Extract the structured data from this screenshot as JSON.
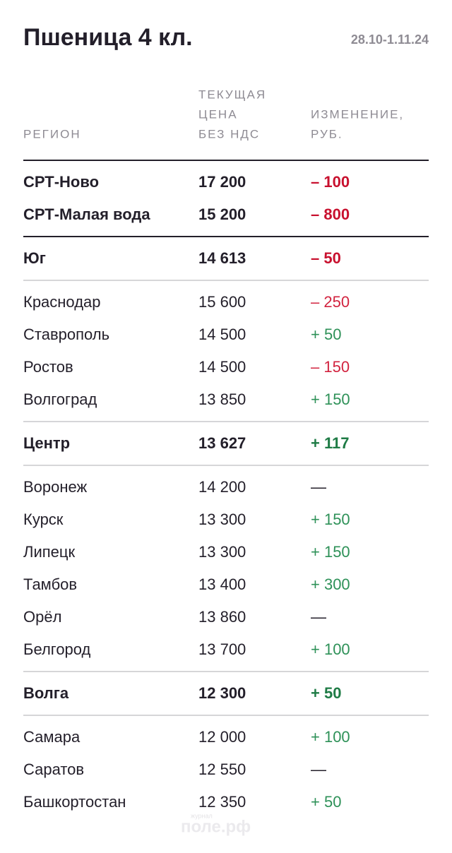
{
  "header": {
    "title": "Пшеница 4 кл.",
    "date": "28.10-1.11.24"
  },
  "columns": {
    "region": [
      "РЕГИОН"
    ],
    "price": [
      "ТЕКУЩАЯ",
      "ЦЕНА",
      "БЕЗ НДС"
    ],
    "change": [
      "ИЗМЕНЕНИЕ,",
      "РУБ."
    ]
  },
  "blocks": [
    {
      "bold": true,
      "rows": [
        [
          "СРТ-Ново",
          "17 200",
          "– 100"
        ],
        [
          "СРТ-Малая вода",
          "15 200",
          "– 800"
        ]
      ]
    },
    {
      "bold": true,
      "rows": [
        [
          "Юг",
          "14 613",
          "– 50"
        ]
      ]
    },
    {
      "bold": false,
      "rows": [
        [
          "Краснодар",
          "15 600",
          "– 250"
        ],
        [
          "Ставрополь",
          "14 500",
          "+ 50"
        ],
        [
          "Ростов",
          "14 500",
          "– 150"
        ],
        [
          "Волгоград",
          "13 850",
          "+ 150"
        ]
      ]
    },
    {
      "bold": true,
      "rows": [
        [
          "Центр",
          "13 627",
          "+ 117"
        ]
      ]
    },
    {
      "bold": false,
      "rows": [
        [
          "Воронеж",
          "14 200",
          "—"
        ],
        [
          "Курск",
          "13 300",
          "+ 150"
        ],
        [
          "Липецк",
          "13 300",
          "+ 150"
        ],
        [
          "Тамбов",
          "13 400",
          "+ 300"
        ],
        [
          "Орёл",
          "13 860",
          "—"
        ],
        [
          "Белгород",
          "13 700",
          "+ 100"
        ]
      ]
    },
    {
      "bold": true,
      "rows": [
        [
          "Волга",
          "12 300",
          "+ 50"
        ]
      ]
    },
    {
      "bold": false,
      "rows": [
        [
          "Самара",
          "12 000",
          "+ 100"
        ],
        [
          "Саратов",
          "12 550",
          "—"
        ],
        [
          "Башкортостан",
          "12 350",
          "+ 50"
        ]
      ]
    }
  ],
  "watermark": {
    "small": "журнал",
    "main": "поле.рф"
  }
}
